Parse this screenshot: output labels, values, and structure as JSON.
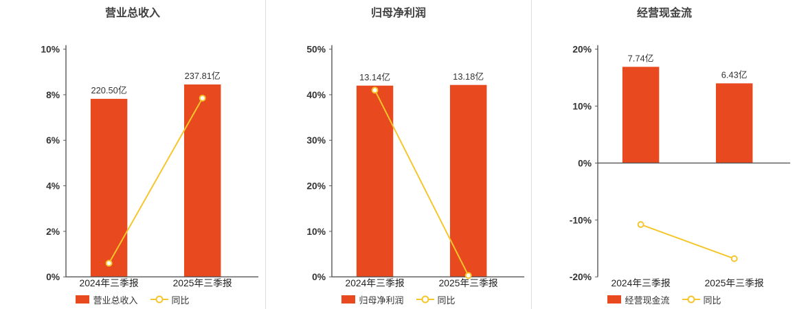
{
  "page": {
    "background": "#ffffff"
  },
  "colors": {
    "bar": "#e8491f",
    "line": "#f5c62b",
    "axis": "#555555",
    "text": "#333333",
    "divider": "#dddddd"
  },
  "chart_data": [
    {
      "type": "bar+line",
      "title": "营业总收入",
      "categories": [
        "2024年三季报",
        "2025年三季报"
      ],
      "ymin": 0,
      "ymax": 10,
      "yticks": [
        0,
        2,
        4,
        6,
        8,
        10
      ],
      "ytick_labels": [
        "0%",
        "2%",
        "4%",
        "6%",
        "8%",
        "10%"
      ],
      "grid": false,
      "legend_position": "bottom",
      "bar_series": {
        "name": "营业总收入",
        "value_labels": [
          "220.50亿",
          "237.81亿"
        ],
        "axis_heights_pct": [
          7.82,
          8.45
        ]
      },
      "line_series": {
        "name": "同比",
        "values_pct": [
          0.6,
          7.85
        ]
      },
      "legend": [
        "营业总收入",
        "同比"
      ]
    },
    {
      "type": "bar+line",
      "title": "归母净利润",
      "categories": [
        "2024年三季报",
        "2025年三季报"
      ],
      "ymin": 0,
      "ymax": 50,
      "yticks": [
        0,
        10,
        20,
        30,
        40,
        50
      ],
      "ytick_labels": [
        "0%",
        "10%",
        "20%",
        "30%",
        "40%",
        "50%"
      ],
      "grid": false,
      "legend_position": "bottom",
      "bar_series": {
        "name": "归母净利润",
        "value_labels": [
          "13.14亿",
          "13.18亿"
        ],
        "axis_heights_pct": [
          42.0,
          42.15
        ]
      },
      "line_series": {
        "name": "同比",
        "values_pct": [
          41.0,
          0.3
        ]
      },
      "legend": [
        "归母净利润",
        "同比"
      ]
    },
    {
      "type": "bar+line",
      "title": "经营现金流",
      "categories": [
        "2024年三季报",
        "2025年三季报"
      ],
      "ymin": -20,
      "ymax": 20,
      "yticks": [
        -20,
        -10,
        0,
        10,
        20
      ],
      "ytick_labels": [
        "-20%",
        "-10%",
        "0%",
        "10%",
        "20%"
      ],
      "grid": false,
      "legend_position": "bottom",
      "bar_series": {
        "name": "经营现金流",
        "value_labels": [
          "7.74亿",
          "6.43亿"
        ],
        "axis_heights_pct": [
          16.9,
          14.0
        ]
      },
      "line_series": {
        "name": "同比",
        "values_pct": [
          -10.8,
          -16.8
        ]
      },
      "legend": [
        "经营现金流",
        "同比"
      ]
    }
  ]
}
